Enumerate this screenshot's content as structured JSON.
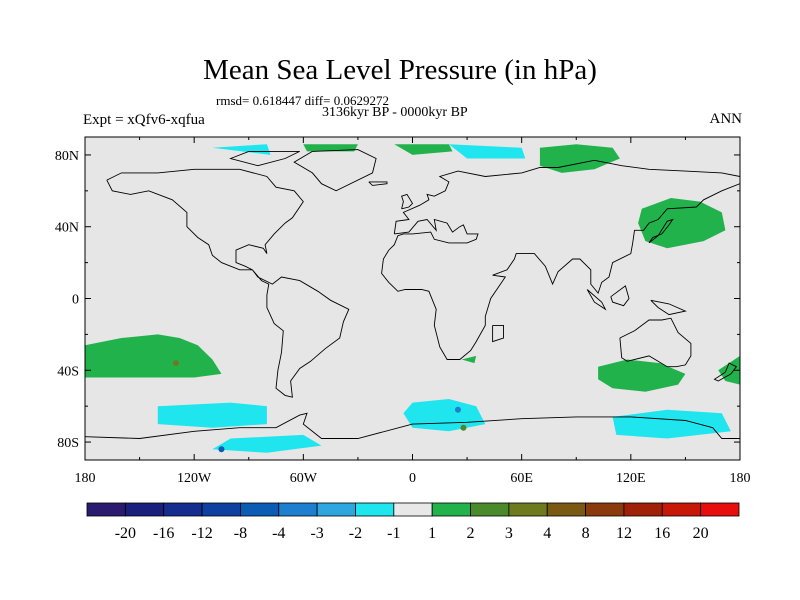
{
  "chart_data": {
    "type": "heatmap",
    "title": "Mean Sea Level Pressure (in hPa)",
    "stats": "rmsd= 0.618447 diff= 0.0629272",
    "period": "3136kyr BP - 0000kyr BP",
    "left_label": "Expt = xQfv6-xqfua",
    "right_label": "ANN",
    "projection": "cylindrical-equidistant",
    "lon_range": [
      -180,
      180
    ],
    "lat_range": [
      -90,
      90
    ],
    "x_ticks": [
      {
        "lon": -180,
        "label": "180"
      },
      {
        "lon": -120,
        "label": "120W"
      },
      {
        "lon": -60,
        "label": "60W"
      },
      {
        "lon": 0,
        "label": "0"
      },
      {
        "lon": 60,
        "label": "60E"
      },
      {
        "lon": 120,
        "label": "120E"
      },
      {
        "lon": 180,
        "label": "180"
      }
    ],
    "y_ticks": [
      {
        "lat": 80,
        "label": "80N"
      },
      {
        "lat": 40,
        "label": "40N"
      },
      {
        "lat": 0,
        "label": "0"
      },
      {
        "lat": -40,
        "label": "40S"
      },
      {
        "lat": -80,
        "label": "80S"
      }
    ],
    "background_color": "#e6e6e6",
    "colorbar": {
      "labels": [
        "-20",
        "-16",
        "-12",
        "-8",
        "-4",
        "-3",
        "-2",
        "-1",
        "1",
        "2",
        "3",
        "4",
        "8",
        "12",
        "16",
        "20"
      ],
      "colors": [
        "#2a1a70",
        "#1a1f7e",
        "#152d8e",
        "#0d40a0",
        "#0b5cb5",
        "#1c7fd0",
        "#2fa6e0",
        "#1fe5ef",
        "#e8e8e8",
        "#22b24c",
        "#4a8a2a",
        "#6e7a1e",
        "#7a5a12",
        "#8a3a0c",
        "#a02008",
        "#c81808",
        "#e80e0e"
      ]
    },
    "anomaly_regions": [
      {
        "name": "north-pacific-high",
        "value_class": "1 to 2",
        "color": "#22b24c",
        "polygon": [
          [
            126,
            50
          ],
          [
            142,
            56
          ],
          [
            158,
            54
          ],
          [
            170,
            48
          ],
          [
            172,
            38
          ],
          [
            160,
            32
          ],
          [
            140,
            28
          ],
          [
            128,
            32
          ],
          [
            124,
            42
          ]
        ]
      },
      {
        "name": "south-pacific",
        "value_class": "1 to 2",
        "color": "#22b24c",
        "polygon": [
          [
            -180,
            -26
          ],
          [
            -160,
            -22
          ],
          [
            -140,
            -20
          ],
          [
            -128,
            -22
          ],
          [
            -118,
            -26
          ],
          [
            -110,
            -34
          ],
          [
            -105,
            -42
          ],
          [
            -120,
            -44
          ],
          [
            -150,
            -44
          ],
          [
            -180,
            -44
          ]
        ]
      },
      {
        "name": "south-indian",
        "value_class": "1 to 2",
        "color": "#22b24c",
        "polygon": [
          [
            102,
            -38
          ],
          [
            118,
            -34
          ],
          [
            136,
            -36
          ],
          [
            150,
            -42
          ],
          [
            146,
            -48
          ],
          [
            128,
            -52
          ],
          [
            110,
            -50
          ],
          [
            102,
            -45
          ]
        ]
      },
      {
        "name": "tasman",
        "value_class": "1 to 2",
        "color": "#22b24c",
        "polygon": [
          [
            168,
            -40
          ],
          [
            180,
            -32
          ],
          [
            180,
            -48
          ],
          [
            172,
            -46
          ]
        ]
      },
      {
        "name": "siberia-arctic",
        "value_class": "1 to 2",
        "color": "#22b24c",
        "polygon": [
          [
            70,
            84
          ],
          [
            90,
            86
          ],
          [
            110,
            84
          ],
          [
            114,
            78
          ],
          [
            100,
            72
          ],
          [
            82,
            70
          ],
          [
            70,
            74
          ]
        ]
      },
      {
        "name": "arctic-1",
        "value_class": "1 to 2",
        "color": "#22b24c",
        "polygon": [
          [
            -10,
            86
          ],
          [
            20,
            86
          ],
          [
            22,
            82
          ],
          [
            0,
            80
          ]
        ]
      },
      {
        "name": "arctic-2",
        "value_class": "1 to 2",
        "color": "#22b24c",
        "polygon": [
          [
            -60,
            86
          ],
          [
            -30,
            86
          ],
          [
            -32,
            82
          ],
          [
            -58,
            82
          ]
        ]
      },
      {
        "name": "south-atlantic-1",
        "value_class": "1 to 2",
        "color": "#22b24c",
        "polygon": [
          [
            27,
            -34
          ],
          [
            35,
            -32
          ],
          [
            34,
            -36
          ]
        ]
      },
      {
        "name": "southern-ocean-west",
        "value_class": "-1 to -2",
        "color": "#1fe5ef",
        "polygon": [
          [
            -140,
            -60
          ],
          [
            -100,
            -58
          ],
          [
            -80,
            -60
          ],
          [
            -80,
            -70
          ],
          [
            -110,
            -72
          ],
          [
            -140,
            -70
          ]
        ]
      },
      {
        "name": "southern-ocean-atlantic",
        "value_class": "-1 to -2",
        "color": "#1fe5ef",
        "polygon": [
          [
            0,
            -58
          ],
          [
            20,
            -56
          ],
          [
            35,
            -60
          ],
          [
            40,
            -70
          ],
          [
            20,
            -74
          ],
          [
            0,
            -72
          ],
          [
            -5,
            -64
          ]
        ]
      },
      {
        "name": "southern-ocean-indian",
        "value_class": "-1 to -2",
        "color": "#1fe5ef",
        "polygon": [
          [
            110,
            -66
          ],
          [
            140,
            -62
          ],
          [
            170,
            -64
          ],
          [
            175,
            -74
          ],
          [
            140,
            -78
          ],
          [
            112,
            -76
          ]
        ]
      },
      {
        "name": "antarctic-interior",
        "value_class": "-1 to -2",
        "color": "#1fe5ef",
        "polygon": [
          [
            -100,
            -78
          ],
          [
            -60,
            -76
          ],
          [
            -50,
            -82
          ],
          [
            -80,
            -86
          ],
          [
            -110,
            -84
          ]
        ]
      },
      {
        "name": "barents",
        "value_class": "-1 to -2",
        "color": "#1fe5ef",
        "polygon": [
          [
            20,
            86
          ],
          [
            60,
            84
          ],
          [
            62,
            78
          ],
          [
            30,
            78
          ]
        ]
      },
      {
        "name": "canada-arctic",
        "value_class": "-1 to -2",
        "color": "#1fe5ef",
        "polygon": [
          [
            -110,
            84
          ],
          [
            -80,
            86
          ],
          [
            -78,
            80
          ],
          -105,
          []
        ]
      }
    ],
    "anomaly_points": [
      {
        "lon": -130,
        "lat": -36,
        "color": "#6e7a1e"
      },
      {
        "lon": -105,
        "lat": -84,
        "color": "#0b5cb5"
      },
      {
        "lon": 25,
        "lat": -62,
        "color": "#1c7fd0"
      },
      {
        "lon": 28,
        "lat": -72,
        "color": "#4a8a2a"
      }
    ]
  }
}
